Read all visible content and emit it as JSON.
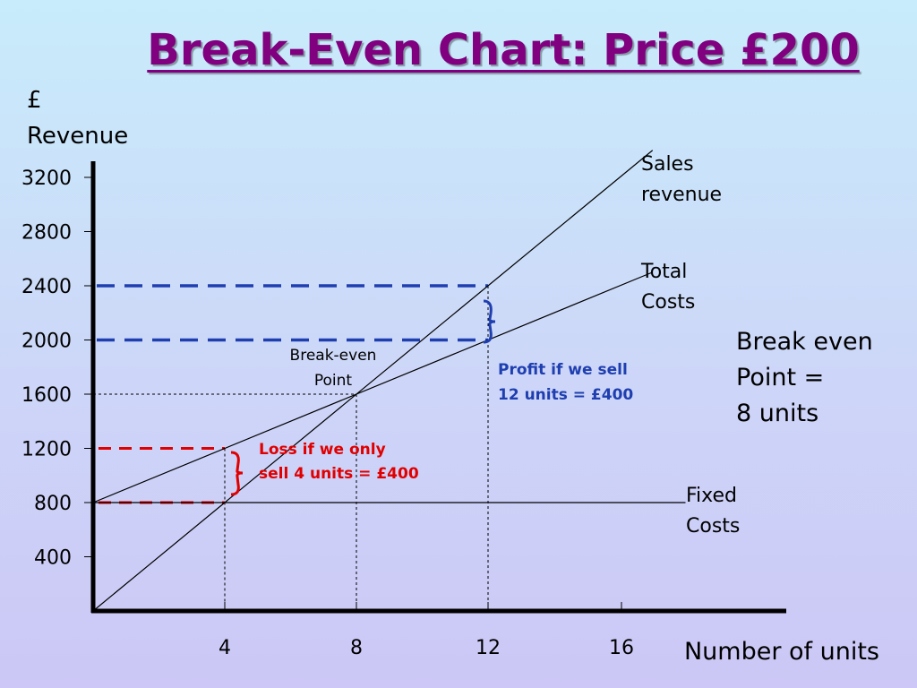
{
  "title": "Break-Even Chart: Price £200",
  "chart_data": {
    "type": "line",
    "ylabel": "£\nRevenue",
    "xlabel": "Number of units",
    "xlim": [
      0,
      17
    ],
    "ylim": [
      0,
      3400
    ],
    "x_ticks": [
      4,
      8,
      12,
      16
    ],
    "y_ticks": [
      400,
      800,
      1200,
      1600,
      2000,
      2400,
      2800,
      3200
    ],
    "series": [
      {
        "name": "Sales revenue",
        "label_lines": [
          "Sales",
          "revenue"
        ],
        "x": [
          0,
          17
        ],
        "y": [
          0,
          3400
        ]
      },
      {
        "name": "Total Costs",
        "label_lines": [
          "Total",
          "Costs"
        ],
        "x": [
          0,
          17
        ],
        "y": [
          800,
          2500
        ]
      },
      {
        "name": "Fixed Costs",
        "label_lines": [
          "Fixed",
          "Costs"
        ],
        "x": [
          0,
          18
        ],
        "y": [
          800,
          800
        ]
      }
    ],
    "break_even": {
      "x": 8,
      "y": 1600,
      "label_lines": [
        "Break-even",
        "Point"
      ]
    },
    "profit": {
      "x": 12,
      "revenue": 2400,
      "cost": 2000,
      "label_lines": [
        "Profit if we sell",
        "12 units = £400"
      ],
      "color": "#1f3fb0"
    },
    "loss": {
      "x": 4,
      "revenue": 800,
      "cost": 1200,
      "label_lines": [
        "Loss if we only",
        "sell 4 units = £400"
      ],
      "color": "#e00000"
    },
    "side_note": [
      "Break even",
      "Point =",
      "8 units"
    ]
  }
}
